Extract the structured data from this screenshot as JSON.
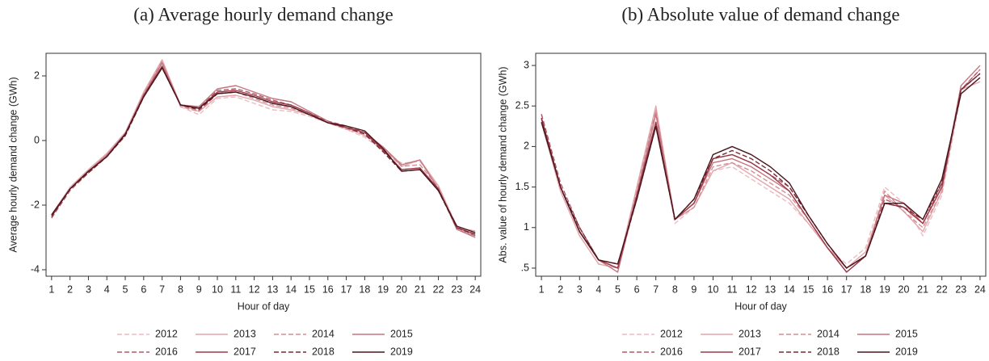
{
  "chart_data": [
    {
      "type": "line",
      "title": "(a) Average hourly demand change",
      "xlabel": "Hour of day",
      "ylabel": "Average hourly demand change (GWh)",
      "x": [
        1,
        2,
        3,
        4,
        5,
        6,
        7,
        8,
        9,
        10,
        11,
        12,
        13,
        14,
        15,
        16,
        17,
        18,
        19,
        20,
        21,
        22,
        23,
        24
      ],
      "xlim": [
        0.7,
        24.3
      ],
      "xticks": [
        1,
        2,
        3,
        4,
        5,
        6,
        7,
        8,
        9,
        10,
        11,
        12,
        13,
        14,
        15,
        16,
        17,
        18,
        19,
        20,
        21,
        22,
        23,
        24
      ],
      "ylim": [
        -4.2,
        2.7
      ],
      "yticks": [
        -4,
        -2,
        0,
        2
      ],
      "legend": "bottom",
      "series": [
        {
          "name": "2012",
          "color": "#ecbcc0",
          "dashed": true,
          "values": [
            -2.3,
            -1.45,
            -0.9,
            -0.4,
            0.25,
            1.45,
            2.45,
            1.05,
            0.8,
            1.3,
            1.35,
            1.15,
            0.95,
            0.9,
            0.75,
            0.55,
            0.35,
            0.1,
            -0.3,
            -0.7,
            -0.65,
            -1.4,
            -2.65,
            -2.85
          ]
        },
        {
          "name": "2013",
          "color": "#e2a6ac",
          "dashed": false,
          "values": [
            -2.3,
            -1.45,
            -0.9,
            -0.4,
            0.25,
            1.5,
            2.5,
            1.1,
            0.9,
            1.35,
            1.4,
            1.25,
            1.05,
            0.95,
            0.8,
            0.55,
            0.4,
            0.15,
            -0.2,
            -0.8,
            -0.6,
            -1.4,
            -2.7,
            -2.8
          ]
        },
        {
          "name": "2014",
          "color": "#d48e96",
          "dashed": true,
          "values": [
            -2.4,
            -1.5,
            -0.95,
            -0.45,
            0.2,
            1.45,
            2.45,
            1.05,
            0.9,
            1.45,
            1.5,
            1.3,
            1.1,
            1.0,
            0.8,
            0.55,
            0.35,
            0.2,
            -0.25,
            -0.8,
            -0.75,
            -1.45,
            -2.75,
            -2.95
          ]
        },
        {
          "name": "2015",
          "color": "#c47680",
          "dashed": false,
          "values": [
            -2.35,
            -1.5,
            -0.95,
            -0.45,
            0.2,
            1.4,
            2.4,
            1.1,
            1.05,
            1.6,
            1.7,
            1.5,
            1.3,
            1.2,
            0.9,
            0.6,
            0.4,
            0.25,
            -0.2,
            -0.75,
            -0.6,
            -1.5,
            -2.75,
            -3.0
          ]
        },
        {
          "name": "2016",
          "color": "#b05c68",
          "dashed": true,
          "values": [
            -2.4,
            -1.55,
            -1.0,
            -0.5,
            0.15,
            1.35,
            2.3,
            1.1,
            1.0,
            1.55,
            1.6,
            1.45,
            1.25,
            1.1,
            0.85,
            0.6,
            0.45,
            0.25,
            -0.3,
            -0.9,
            -0.85,
            -1.55,
            -2.7,
            -2.95
          ]
        },
        {
          "name": "2017",
          "color": "#9a3a48",
          "dashed": false,
          "values": [
            -2.35,
            -1.5,
            -0.95,
            -0.5,
            0.2,
            1.4,
            2.3,
            1.1,
            1.0,
            1.5,
            1.55,
            1.4,
            1.2,
            1.1,
            0.85,
            0.55,
            0.4,
            0.25,
            -0.3,
            -0.9,
            -0.85,
            -1.5,
            -2.7,
            -2.9
          ]
        },
        {
          "name": "2018",
          "color": "#7a2834",
          "dashed": true,
          "values": [
            -2.35,
            -1.5,
            -1.0,
            -0.5,
            0.15,
            1.35,
            2.25,
            1.1,
            0.95,
            1.45,
            1.5,
            1.35,
            1.15,
            1.05,
            0.8,
            0.55,
            0.4,
            0.2,
            -0.35,
            -0.95,
            -0.9,
            -1.55,
            -2.7,
            -2.9
          ]
        },
        {
          "name": "2019",
          "color": "#4a161e",
          "dashed": false,
          "values": [
            -2.3,
            -1.5,
            -0.95,
            -0.5,
            0.2,
            1.35,
            2.25,
            1.1,
            1.0,
            1.45,
            1.5,
            1.35,
            1.15,
            1.05,
            0.8,
            0.55,
            0.45,
            0.3,
            -0.25,
            -0.95,
            -0.9,
            -1.55,
            -2.65,
            -2.85
          ]
        }
      ]
    },
    {
      "type": "line",
      "title": "(b) Absolute value of demand change",
      "xlabel": "Hour of day",
      "ylabel": "Abs. value of hourly demand change (GWh)",
      "x": [
        1,
        2,
        3,
        4,
        5,
        6,
        7,
        8,
        9,
        10,
        11,
        12,
        13,
        14,
        15,
        16,
        17,
        18,
        19,
        20,
        21,
        22,
        23,
        24
      ],
      "xlim": [
        0.7,
        24.3
      ],
      "xticks": [
        1,
        2,
        3,
        4,
        5,
        6,
        7,
        8,
        9,
        10,
        11,
        12,
        13,
        14,
        15,
        16,
        17,
        18,
        19,
        20,
        21,
        22,
        23,
        24
      ],
      "ylim": [
        0.4,
        3.15
      ],
      "yticks": [
        {
          "value": 0.5,
          "label": ".5"
        },
        1,
        1.5,
        2,
        2.5,
        3
      ],
      "legend": "bottom",
      "series": [
        {
          "name": "2012",
          "color": "#ecbcc0",
          "dashed": true,
          "values": [
            2.3,
            1.45,
            0.9,
            0.55,
            0.5,
            1.45,
            2.45,
            1.05,
            1.25,
            1.7,
            1.75,
            1.6,
            1.45,
            1.3,
            1.05,
            0.75,
            0.55,
            0.75,
            1.5,
            1.3,
            0.9,
            1.4,
            2.65,
            2.85
          ]
        },
        {
          "name": "2013",
          "color": "#e2a6ac",
          "dashed": false,
          "values": [
            2.3,
            1.45,
            0.9,
            0.55,
            0.5,
            1.5,
            2.5,
            1.1,
            1.25,
            1.7,
            1.8,
            1.65,
            1.5,
            1.35,
            1.05,
            0.75,
            0.5,
            0.7,
            1.4,
            1.2,
            0.95,
            1.45,
            2.7,
            2.8
          ]
        },
        {
          "name": "2014",
          "color": "#d48e96",
          "dashed": true,
          "values": [
            2.4,
            1.5,
            0.95,
            0.6,
            0.5,
            1.45,
            2.45,
            1.1,
            1.25,
            1.75,
            1.8,
            1.7,
            1.55,
            1.4,
            1.1,
            0.75,
            0.5,
            0.65,
            1.45,
            1.2,
            1.0,
            1.45,
            2.7,
            2.95
          ]
        },
        {
          "name": "2015",
          "color": "#c47680",
          "dashed": false,
          "values": [
            2.35,
            1.5,
            0.95,
            0.6,
            0.45,
            1.4,
            2.4,
            1.1,
            1.3,
            1.8,
            1.85,
            1.75,
            1.6,
            1.45,
            1.1,
            0.75,
            0.45,
            0.65,
            1.4,
            1.3,
            1.05,
            1.5,
            2.75,
            3.0
          ]
        },
        {
          "name": "2016",
          "color": "#b05c68",
          "dashed": true,
          "values": [
            2.4,
            1.55,
            1.0,
            0.6,
            0.5,
            1.35,
            2.3,
            1.1,
            1.3,
            1.85,
            1.9,
            1.8,
            1.65,
            1.5,
            1.15,
            0.8,
            0.5,
            0.65,
            1.35,
            1.25,
            1.05,
            1.55,
            2.7,
            2.95
          ]
        },
        {
          "name": "2017",
          "color": "#9a3a48",
          "dashed": false,
          "values": [
            2.35,
            1.5,
            0.95,
            0.6,
            0.5,
            1.4,
            2.3,
            1.1,
            1.3,
            1.85,
            1.9,
            1.8,
            1.65,
            1.45,
            1.1,
            0.75,
            0.45,
            0.65,
            1.3,
            1.25,
            1.05,
            1.5,
            2.7,
            2.9
          ]
        },
        {
          "name": "2018",
          "color": "#7a2834",
          "dashed": true,
          "values": [
            2.35,
            1.5,
            1.0,
            0.6,
            0.55,
            1.35,
            2.25,
            1.1,
            1.35,
            1.85,
            1.95,
            1.85,
            1.7,
            1.5,
            1.15,
            0.8,
            0.5,
            0.65,
            1.3,
            1.25,
            1.1,
            1.55,
            2.7,
            2.9
          ]
        },
        {
          "name": "2019",
          "color": "#4a161e",
          "dashed": false,
          "values": [
            2.3,
            1.5,
            0.95,
            0.6,
            0.55,
            1.35,
            2.25,
            1.1,
            1.35,
            1.9,
            2.0,
            1.9,
            1.75,
            1.55,
            1.15,
            0.8,
            0.5,
            0.65,
            1.3,
            1.3,
            1.1,
            1.6,
            2.65,
            2.85
          ]
        }
      ]
    }
  ]
}
